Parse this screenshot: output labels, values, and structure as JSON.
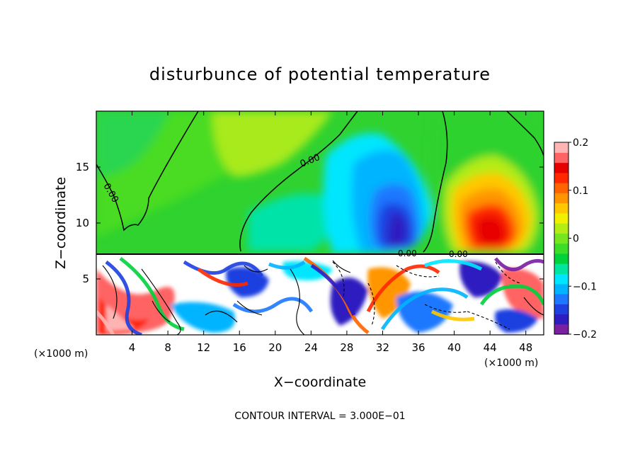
{
  "chart_data": {
    "type": "heatmap",
    "title": "disturbunce of potential temperature",
    "xlabel": "X−coordinate",
    "ylabel": "Z−coordinate",
    "x_unit_left": "(×1000 m)",
    "x_unit_right": "(×1000 m)",
    "xlim": [
      0,
      50
    ],
    "ylim": [
      0,
      20
    ],
    "xticks": [
      4,
      8,
      12,
      16,
      20,
      24,
      28,
      32,
      36,
      40,
      44,
      48
    ],
    "xtick_labels": [
      "4",
      "8",
      "12",
      "16",
      "20",
      "24",
      "28",
      "32",
      "36",
      "40",
      "44",
      "48"
    ],
    "yticks": [
      5,
      10,
      15
    ],
    "ytick_labels": [
      "5",
      "10",
      "15"
    ],
    "colorbar": {
      "range": [
        -0.2,
        0.2
      ],
      "ticks": [
        0.2,
        0.1,
        0,
        -0.1,
        -0.2
      ],
      "tick_labels": [
        "0.2",
        "0.1",
        "0",
        "−0.1",
        "−0.2"
      ],
      "colors": [
        "#7a1fa2",
        "#2d1cc0",
        "#1e40e0",
        "#1e78ff",
        "#00b4ff",
        "#00e6ff",
        "#00e6a0",
        "#00d23c",
        "#3cdc28",
        "#78e61e",
        "#b4ec14",
        "#f0f000",
        "#ffc800",
        "#ff9600",
        "#ff6400",
        "#ff2800",
        "#e60000",
        "#ff6464",
        "#ffb4b4"
      ]
    },
    "contour_labels": [
      "0.00",
      "0.00",
      "0.00",
      "0.00"
    ],
    "footer": "CONTOUR INTERVAL = 3.000E−01",
    "features": [
      {
        "name": "negative anomaly",
        "x_center": 33,
        "z_center": 11,
        "min_value": -0.18
      },
      {
        "name": "positive anomaly",
        "x_center": 43,
        "z_center": 10,
        "max_value": 0.15
      },
      {
        "name": "boundary layer turbulence",
        "z_top": 7.2
      }
    ]
  }
}
